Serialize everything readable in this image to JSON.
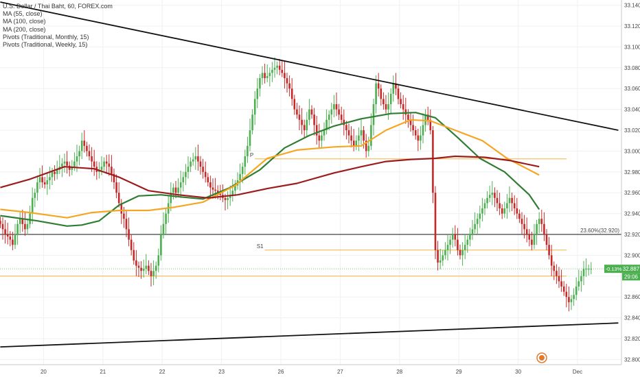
{
  "legend": {
    "symbol_line": "U.S. Dollar / Thai Baht, 60, FOREX.com",
    "indicators": [
      "MA (55, close)",
      "MA (100, close)",
      "MA (200, close)",
      "Pivots (Traditional, Monthly, 15)",
      "Pivots (Traditional, Weekly, 15)"
    ]
  },
  "price_badge": {
    "change": "-0.13%",
    "price": "32.887",
    "countdown": "29:06",
    "color": "#4caf50"
  },
  "chart_data": {
    "type": "candlestick",
    "symbol": "U.S. Dollar / Thai Baht",
    "interval": "60",
    "source": "FOREX.com",
    "y_axis": {
      "ticks": [
        32.8,
        32.82,
        32.84,
        32.86,
        32.88,
        32.9,
        32.92,
        32.94,
        32.96,
        32.98,
        33.0,
        33.02,
        33.04,
        33.06,
        33.08,
        33.1,
        33.12,
        33.14
      ],
      "ylim": [
        32.795,
        33.145
      ],
      "position": "right"
    },
    "x_axis": {
      "day_labels": [
        "20",
        "21",
        "22",
        "23",
        "26",
        "27",
        "28",
        "29",
        "30",
        "Dec"
      ],
      "bars_per_day": 24,
      "first_bar_hour": 6,
      "total_bars": 264
    },
    "colors": {
      "up": "#4caf50",
      "down": "#c62828"
    },
    "closes": [
      32.93,
      32.925,
      32.92,
      32.918,
      32.915,
      32.91,
      32.92,
      32.93,
      32.935,
      32.93,
      32.925,
      32.93,
      32.94,
      32.955,
      32.96,
      32.97,
      32.975,
      32.97,
      32.968,
      32.972,
      32.975,
      32.98,
      32.978,
      32.982,
      32.985,
      32.988,
      32.99,
      32.986,
      32.982,
      32.985,
      32.99,
      32.995,
      33.0,
      33.01,
      33.005,
      33.0,
      32.995,
      32.99,
      32.985,
      32.98,
      32.982,
      32.985,
      32.99,
      32.988,
      32.985,
      32.978,
      32.97,
      32.96,
      32.95,
      32.94,
      32.935,
      32.925,
      32.915,
      32.905,
      32.895,
      32.89,
      32.888,
      32.885,
      32.887,
      32.89,
      32.885,
      32.88,
      32.885,
      32.89,
      32.9,
      32.92,
      32.93,
      32.94,
      32.95,
      32.96,
      32.965,
      32.96,
      32.965,
      32.97,
      32.975,
      32.98,
      32.985,
      32.99,
      32.992,
      32.995,
      32.99,
      32.985,
      32.98,
      32.975,
      32.97,
      32.965,
      32.963,
      32.962,
      32.96,
      32.958,
      32.955,
      32.953,
      32.955,
      32.958,
      32.962,
      32.967,
      32.972,
      32.978,
      32.985,
      32.995,
      33.005,
      33.02,
      33.035,
      33.05,
      33.06,
      33.07,
      33.075,
      33.07,
      33.072,
      33.075,
      33.078,
      33.08,
      33.082,
      33.078,
      33.075,
      33.07,
      33.065,
      33.06,
      33.05,
      33.04,
      33.035,
      33.03,
      33.025,
      33.02,
      33.03,
      33.04,
      33.035,
      33.025,
      33.015,
      33.01,
      33.015,
      33.02,
      33.03,
      33.035,
      33.04,
      33.045,
      33.04,
      33.035,
      33.03,
      33.025,
      33.02,
      33.015,
      33.01,
      33.005,
      33.01,
      33.015,
      33.02,
      33.01,
      33.0,
      33.005,
      33.025,
      33.045,
      33.065,
      33.06,
      33.05,
      33.045,
      33.04,
      33.045,
      33.055,
      33.065,
      33.06,
      33.05,
      33.045,
      33.04,
      33.035,
      33.03,
      33.025,
      33.02,
      33.015,
      33.01,
      33.015,
      33.025,
      33.035,
      33.03,
      33.02,
      32.96,
      32.905,
      32.893,
      32.895,
      32.9,
      32.905,
      32.91,
      32.915,
      32.92,
      32.915,
      32.905,
      32.9,
      32.905,
      32.91,
      32.915,
      32.92,
      32.925,
      32.93,
      32.935,
      32.94,
      32.945,
      32.95,
      32.955,
      32.958,
      32.96,
      32.955,
      32.95,
      32.945,
      32.94,
      32.945,
      32.95,
      32.955,
      32.95,
      32.945,
      32.94,
      32.935,
      32.93,
      32.925,
      32.92,
      32.915,
      32.91,
      32.92,
      32.93,
      32.935,
      32.93,
      32.92,
      32.91,
      32.9,
      32.89,
      32.885,
      32.88,
      32.875,
      32.87,
      32.865,
      32.86,
      32.855,
      32.858,
      32.862,
      32.87,
      32.875,
      32.88,
      32.887,
      32.887,
      32.887,
      32.887,
      32.887,
      32.887,
      32.887,
      32.887,
      32.887,
      32.887,
      32.887,
      32.887,
      32.887,
      32.887,
      32.887,
      32.887,
      32.887,
      32.887,
      32.887,
      32.887,
      32.887,
      32.887,
      32.887,
      32.887,
      32.887,
      32.887,
      32.887,
      32.887
    ],
    "visible_bars": 240,
    "moving_averages": [
      {
        "name": "MA (55, close)",
        "color": "#2e7d32",
        "points": [
          [
            0,
            32.938
          ],
          [
            15,
            32.933
          ],
          [
            27,
            32.928
          ],
          [
            33,
            32.929
          ],
          [
            40,
            32.933
          ],
          [
            48,
            32.948
          ],
          [
            56,
            32.957
          ],
          [
            65,
            32.958
          ],
          [
            73,
            32.956
          ],
          [
            82,
            32.954
          ],
          [
            93,
            32.965
          ],
          [
            105,
            32.982
          ],
          [
            115,
            33.003
          ],
          [
            125,
            33.015
          ],
          [
            135,
            33.024
          ],
          [
            146,
            33.031
          ],
          [
            158,
            33.036
          ],
          [
            168,
            33.037
          ],
          [
            176,
            33.032
          ],
          [
            185,
            33.013
          ],
          [
            194,
            32.993
          ],
          [
            204,
            32.98
          ],
          [
            214,
            32.958
          ],
          [
            218,
            32.944
          ]
        ]
      },
      {
        "name": "MA (100, close)",
        "color": "#f5a623",
        "points": [
          [
            0,
            32.944
          ],
          [
            12,
            32.941
          ],
          [
            27,
            32.936
          ],
          [
            37,
            32.941
          ],
          [
            48,
            32.943
          ],
          [
            60,
            32.943
          ],
          [
            70,
            32.946
          ],
          [
            82,
            32.951
          ],
          [
            95,
            32.967
          ],
          [
            108,
            32.993
          ],
          [
            120,
            33.001
          ],
          [
            135,
            33.004
          ],
          [
            146,
            33.005
          ],
          [
            156,
            33.02
          ],
          [
            166,
            33.03
          ],
          [
            174,
            33.029
          ],
          [
            184,
            33.02
          ],
          [
            195,
            33.01
          ],
          [
            205,
            32.993
          ],
          [
            218,
            32.977
          ]
        ]
      },
      {
        "name": "MA (200, close)",
        "color": "#9b1c1c",
        "points": [
          [
            0,
            32.965
          ],
          [
            12,
            32.973
          ],
          [
            26,
            32.985
          ],
          [
            38,
            32.983
          ],
          [
            48,
            32.975
          ],
          [
            60,
            32.962
          ],
          [
            72,
            32.958
          ],
          [
            84,
            32.955
          ],
          [
            96,
            32.958
          ],
          [
            108,
            32.964
          ],
          [
            120,
            32.969
          ],
          [
            135,
            32.979
          ],
          [
            146,
            32.985
          ],
          [
            156,
            32.99
          ],
          [
            166,
            32.992
          ],
          [
            176,
            32.993
          ],
          [
            184,
            32.995
          ],
          [
            196,
            32.994
          ],
          [
            206,
            32.991
          ],
          [
            218,
            32.985
          ]
        ]
      }
    ],
    "trendlines": [
      {
        "name": "upper",
        "color": "#111111",
        "points": [
          [
            0,
            33.143
          ],
          [
            250,
            33.02
          ]
        ]
      },
      {
        "name": "lower",
        "color": "#111111",
        "points": [
          [
            0,
            32.812
          ],
          [
            250,
            32.835
          ]
        ]
      }
    ],
    "levels": [
      {
        "price": 32.92,
        "label": "23.60%(32.920)",
        "color": "#111111"
      },
      {
        "price": 32.905,
        "label": "S1",
        "color": "#f5a623",
        "start_bar": 107
      },
      {
        "price": 32.88,
        "label": "",
        "color": "#f5a623"
      },
      {
        "price": 32.9925,
        "label": "P",
        "color": "#f5a623",
        "start_bar": 103
      }
    ]
  }
}
